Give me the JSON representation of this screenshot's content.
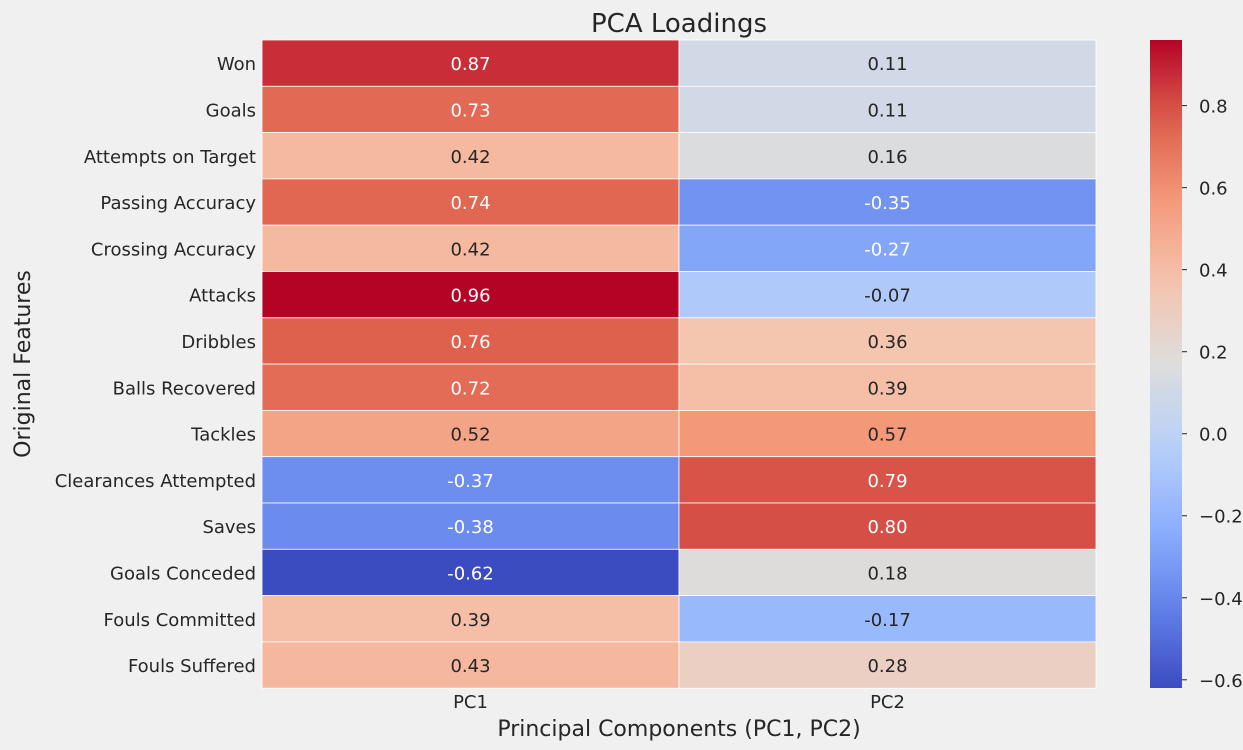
{
  "chart_data": {
    "type": "heatmap",
    "title": "PCA Loadings",
    "xlabel": "Principal Components (PC1, PC2)",
    "ylabel": "Original Features",
    "columns": [
      "PC1",
      "PC2"
    ],
    "rows": [
      "Won",
      "Goals",
      "Attempts on Target",
      "Passing Accuracy",
      "Crossing Accuracy",
      "Attacks",
      "Dribbles",
      "Balls Recovered",
      "Tackles",
      "Clearances Attempted",
      "Saves",
      "Goals Conceded",
      "Fouls Committed",
      "Fouls Suffered"
    ],
    "values": [
      [
        0.87,
        0.11
      ],
      [
        0.73,
        0.11
      ],
      [
        0.42,
        0.16
      ],
      [
        0.74,
        -0.35
      ],
      [
        0.42,
        -0.27
      ],
      [
        0.96,
        -0.07
      ],
      [
        0.76,
        0.36
      ],
      [
        0.72,
        0.39
      ],
      [
        0.52,
        0.57
      ],
      [
        -0.37,
        0.79
      ],
      [
        -0.38,
        0.8
      ],
      [
        -0.62,
        0.18
      ],
      [
        0.39,
        -0.17
      ],
      [
        0.43,
        0.28
      ]
    ],
    "value_labels": [
      [
        "0.87",
        "0.11"
      ],
      [
        "0.73",
        "0.11"
      ],
      [
        "0.42",
        "0.16"
      ],
      [
        "0.74",
        "-0.35"
      ],
      [
        "0.42",
        "-0.27"
      ],
      [
        "0.96",
        "-0.07"
      ],
      [
        "0.76",
        "0.36"
      ],
      [
        "0.72",
        "0.39"
      ],
      [
        "0.52",
        "0.57"
      ],
      [
        "-0.37",
        "0.79"
      ],
      [
        "-0.38",
        "0.80"
      ],
      [
        "-0.62",
        "0.18"
      ],
      [
        "0.39",
        "-0.17"
      ],
      [
        "0.43",
        "0.28"
      ]
    ],
    "colormap": "coolwarm",
    "color_range": [
      -0.62,
      0.96
    ],
    "colorbar_ticks": [
      0.8,
      0.6,
      0.4,
      0.2,
      0.0,
      -0.2,
      -0.4,
      -0.6
    ],
    "colorbar_tick_labels": [
      "0.8",
      "0.6",
      "0.4",
      "0.2",
      "0.0",
      "−0.2",
      "−0.4",
      "−0.6"
    ],
    "colors": {
      "background": "#f0f0f0",
      "text": "#262626",
      "cell_border": "#ffffff"
    }
  }
}
